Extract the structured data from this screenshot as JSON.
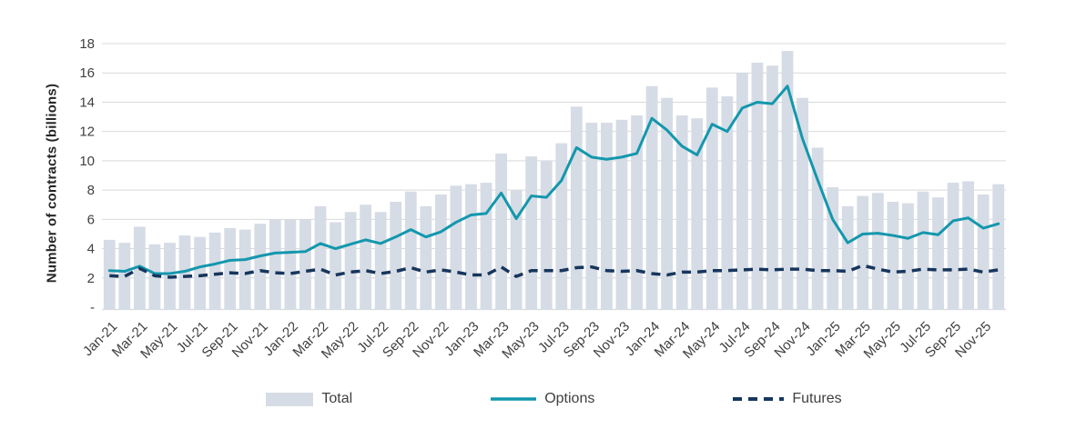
{
  "chart_data": {
    "type": "bar",
    "title": "",
    "ylabel": "Number of contracts (billions)",
    "xlabel": "",
    "ylim": [
      0,
      18
    ],
    "ytick_step": 2,
    "ytick_zero_label": "-",
    "grid": true,
    "legend_position": "bottom",
    "categories": [
      "Jan-21",
      "Feb-21",
      "Mar-21",
      "Apr-21",
      "May-21",
      "Jun-21",
      "Jul-21",
      "Aug-21",
      "Sep-21",
      "Oct-21",
      "Nov-21",
      "Dec-21",
      "Jan-22",
      "Feb-22",
      "Mar-22",
      "Apr-22",
      "May-22",
      "Jun-22",
      "Jul-22",
      "Aug-22",
      "Sep-22",
      "Oct-22",
      "Nov-22",
      "Dec-22",
      "Jan-23",
      "Feb-23",
      "Mar-23",
      "Apr-23",
      "May-23",
      "Jun-23",
      "Jul-23",
      "Aug-23",
      "Sep-23",
      "Oct-23",
      "Nov-23",
      "Dec-23",
      "Jan-24",
      "Feb-24",
      "Mar-24",
      "Apr-24",
      "May-24",
      "Jun-24",
      "Jul-24",
      "Aug-24",
      "Sep-24",
      "Oct-24",
      "Nov-24",
      "Dec-24",
      "Jan-25",
      "Feb-25",
      "Mar-25",
      "Apr-25",
      "May-25",
      "Jun-25",
      "Jul-25",
      "Aug-25",
      "Sep-25",
      "Oct-25",
      "Nov-25",
      "Dec-25"
    ],
    "xtick_labels": [
      "Jan-21",
      "Mar-21",
      "May-21",
      "Jul-21",
      "Sep-21",
      "Nov-21",
      "Jan-22",
      "Mar-22",
      "May-22",
      "Jul-22",
      "Sep-22",
      "Nov-22",
      "Jan-23",
      "Mar-23",
      "May-23",
      "Jul-23",
      "Sep-23",
      "Nov-23",
      "Jan-24",
      "Mar-24",
      "May-24",
      "Jul-24",
      "Sep-24",
      "Nov-24",
      "Jan-25",
      "Mar-25",
      "May-25",
      "Jul-25",
      "Sep-25",
      "Nov-25"
    ],
    "series": [
      {
        "name": "Total",
        "kind": "bar",
        "color": "#d6dce5",
        "values": [
          4.6,
          4.4,
          5.5,
          4.3,
          4.4,
          4.9,
          4.8,
          5.1,
          5.4,
          5.3,
          5.7,
          6.0,
          6.0,
          6.0,
          6.9,
          5.8,
          6.5,
          7.0,
          6.5,
          7.2,
          7.9,
          6.9,
          7.7,
          8.3,
          8.4,
          8.5,
          10.5,
          8.0,
          10.3,
          10.0,
          11.2,
          13.7,
          12.6,
          12.6,
          12.8,
          13.1,
          15.1,
          14.3,
          13.1,
          12.9,
          15.0,
          14.4,
          16.0,
          16.7,
          16.5,
          17.5,
          14.3,
          10.9,
          8.2,
          6.9,
          7.6,
          7.8,
          7.2,
          7.1,
          7.9,
          7.5,
          8.5,
          8.6,
          7.7,
          8.4
        ]
      },
      {
        "name": "Options",
        "kind": "line",
        "color": "#1397ad",
        "values": [
          2.5,
          2.45,
          2.8,
          2.3,
          2.3,
          2.45,
          2.75,
          2.95,
          3.2,
          3.25,
          3.5,
          3.7,
          3.75,
          3.8,
          4.35,
          4.0,
          4.3,
          4.6,
          4.35,
          4.8,
          5.3,
          4.8,
          5.15,
          5.8,
          6.3,
          6.4,
          7.8,
          6.05,
          7.6,
          7.5,
          8.65,
          10.9,
          10.25,
          10.1,
          10.25,
          10.5,
          12.9,
          12.1,
          11.0,
          10.4,
          12.5,
          12.0,
          13.6,
          14.0,
          13.9,
          15.1,
          11.5,
          8.7,
          6.0,
          4.4,
          5.0,
          5.05,
          4.9,
          4.7,
          5.1,
          4.95,
          5.9,
          6.1,
          5.4,
          5.7
        ]
      },
      {
        "name": "Futures",
        "kind": "dashed-line",
        "color": "#17365d",
        "values": [
          2.15,
          2.1,
          2.65,
          2.15,
          2.05,
          2.1,
          2.15,
          2.25,
          2.35,
          2.3,
          2.5,
          2.35,
          2.3,
          2.45,
          2.6,
          2.2,
          2.4,
          2.5,
          2.3,
          2.45,
          2.7,
          2.4,
          2.55,
          2.4,
          2.2,
          2.2,
          2.75,
          2.1,
          2.5,
          2.5,
          2.5,
          2.7,
          2.75,
          2.5,
          2.45,
          2.5,
          2.3,
          2.2,
          2.4,
          2.4,
          2.5,
          2.5,
          2.55,
          2.6,
          2.55,
          2.6,
          2.6,
          2.5,
          2.5,
          2.45,
          2.85,
          2.6,
          2.4,
          2.45,
          2.6,
          2.55,
          2.55,
          2.6,
          2.4,
          2.55
        ]
      }
    ],
    "colors": {
      "gridline": "#d9d9d9",
      "axis_line": "#d9d9d9",
      "tick_text": "#404040",
      "background": "#ffffff"
    }
  }
}
